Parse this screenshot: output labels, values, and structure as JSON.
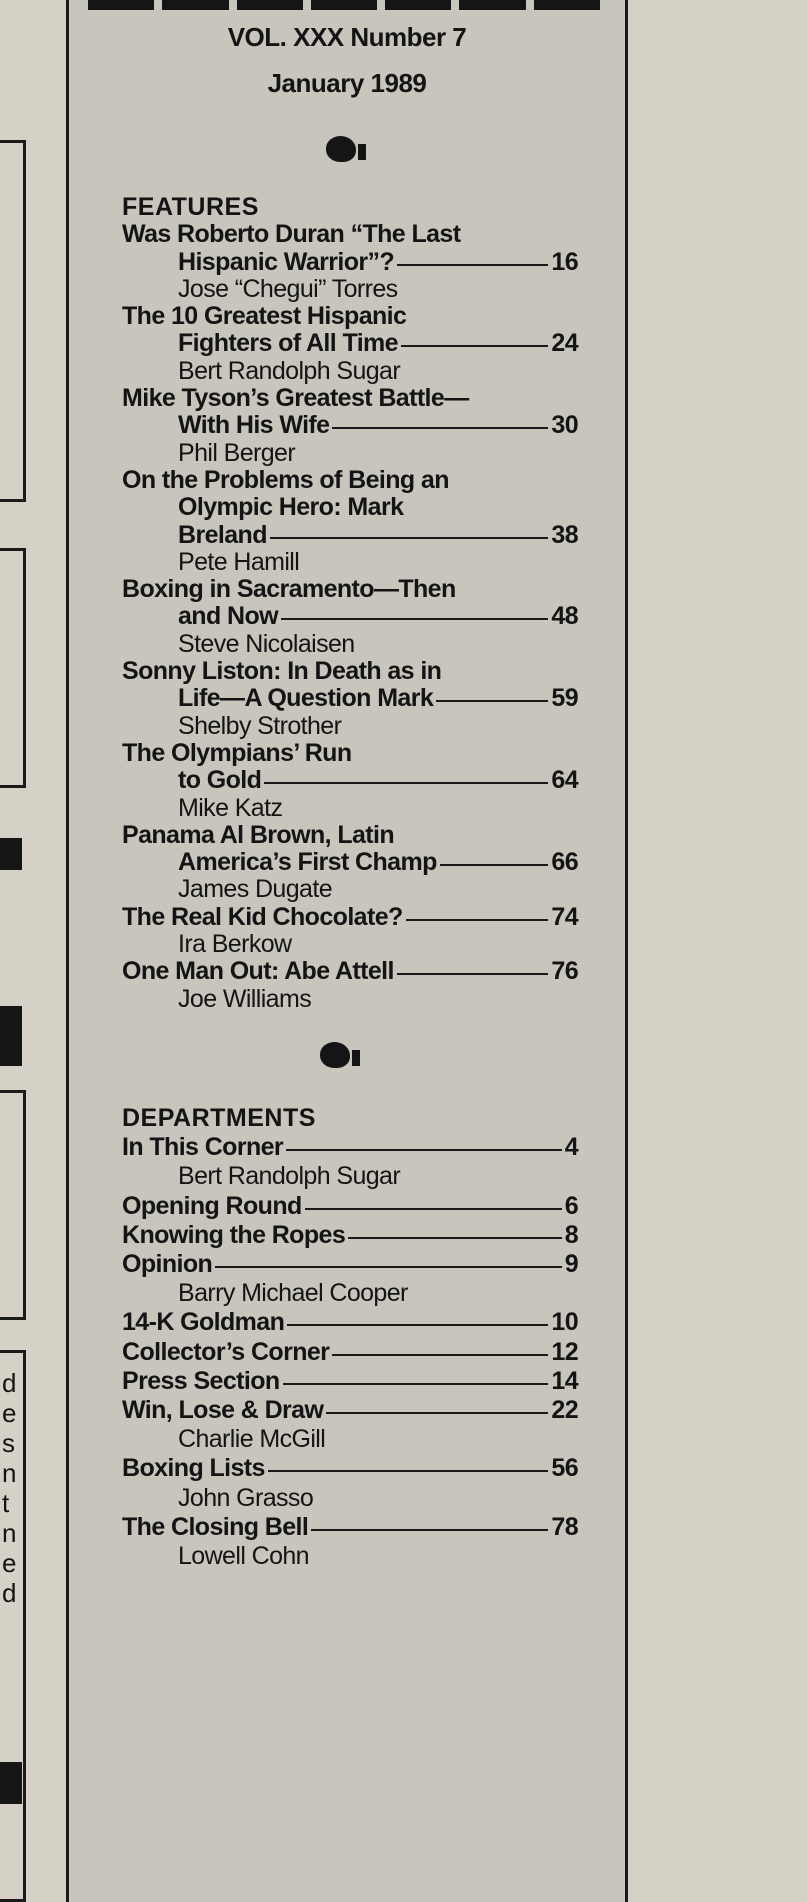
{
  "header": {
    "volume": "VOL. XXX Number 7",
    "date": "January 1989",
    "divider_icon": "boxing-glove-icon"
  },
  "features": {
    "heading": "FEATURES",
    "entries": [
      {
        "title_lines": [
          "Was Roberto Duran “The Last",
          "Hispanic Warrior”?"
        ],
        "page": "16",
        "author": "Jose “Chegui” Torres"
      },
      {
        "title_lines": [
          "The 10 Greatest Hispanic",
          "Fighters of All Time"
        ],
        "page": "24",
        "author": "Bert Randolph Sugar"
      },
      {
        "title_lines": [
          "Mike Tyson’s Greatest Battle—",
          "With His Wife"
        ],
        "page": "30",
        "author": "Phil Berger"
      },
      {
        "title_lines": [
          "On the Problems of Being an",
          "Olympic Hero: Mark",
          "Breland"
        ],
        "page": "38",
        "author": "Pete Hamill"
      },
      {
        "title_lines": [
          "Boxing in Sacramento—Then",
          "and Now"
        ],
        "page": "48",
        "author": "Steve Nicolaisen"
      },
      {
        "title_lines": [
          "Sonny Liston: In Death as in",
          "Life—A Question Mark"
        ],
        "page": "59",
        "author": "Shelby Strother"
      },
      {
        "title_lines": [
          "The Olympians’ Run",
          "to Gold"
        ],
        "page": "64",
        "author": "Mike Katz"
      },
      {
        "title_lines": [
          "Panama Al Brown, Latin",
          "America’s First Champ"
        ],
        "page": "66",
        "author": "James Dugate"
      },
      {
        "title_lines": [
          "The Real Kid Chocolate?"
        ],
        "page": "74",
        "author": "Ira Berkow"
      },
      {
        "title_lines": [
          "One Man Out: Abe Attell"
        ],
        "page": "76",
        "author": "Joe Williams"
      }
    ]
  },
  "departments": {
    "heading": "DEPARTMENTS",
    "entries": [
      {
        "title_lines": [
          "In This Corner"
        ],
        "page": "4",
        "author": "Bert Randolph Sugar"
      },
      {
        "title_lines": [
          "Opening Round"
        ],
        "page": "6"
      },
      {
        "title_lines": [
          "Knowing the Ropes"
        ],
        "page": "8"
      },
      {
        "title_lines": [
          "Opinion"
        ],
        "page": "9",
        "author": "Barry Michael Cooper"
      },
      {
        "title_lines": [
          "14-K Goldman"
        ],
        "page": "10"
      },
      {
        "title_lines": [
          "Collector’s Corner"
        ],
        "page": "12"
      },
      {
        "title_lines": [
          "Press Section"
        ],
        "page": "14"
      },
      {
        "title_lines": [
          "Win, Lose & Draw"
        ],
        "page": "22",
        "author": "Charlie McGill"
      },
      {
        "title_lines": [
          "Boxing Lists"
        ],
        "page": "56",
        "author": "John Grasso"
      },
      {
        "title_lines": [
          "The Closing Bell"
        ],
        "page": "78",
        "author": "Lowell Cohn"
      }
    ]
  },
  "left_column_fragments": [
    "d",
    "e",
    "s",
    "n",
    "t",
    "n",
    "e",
    "d"
  ]
}
